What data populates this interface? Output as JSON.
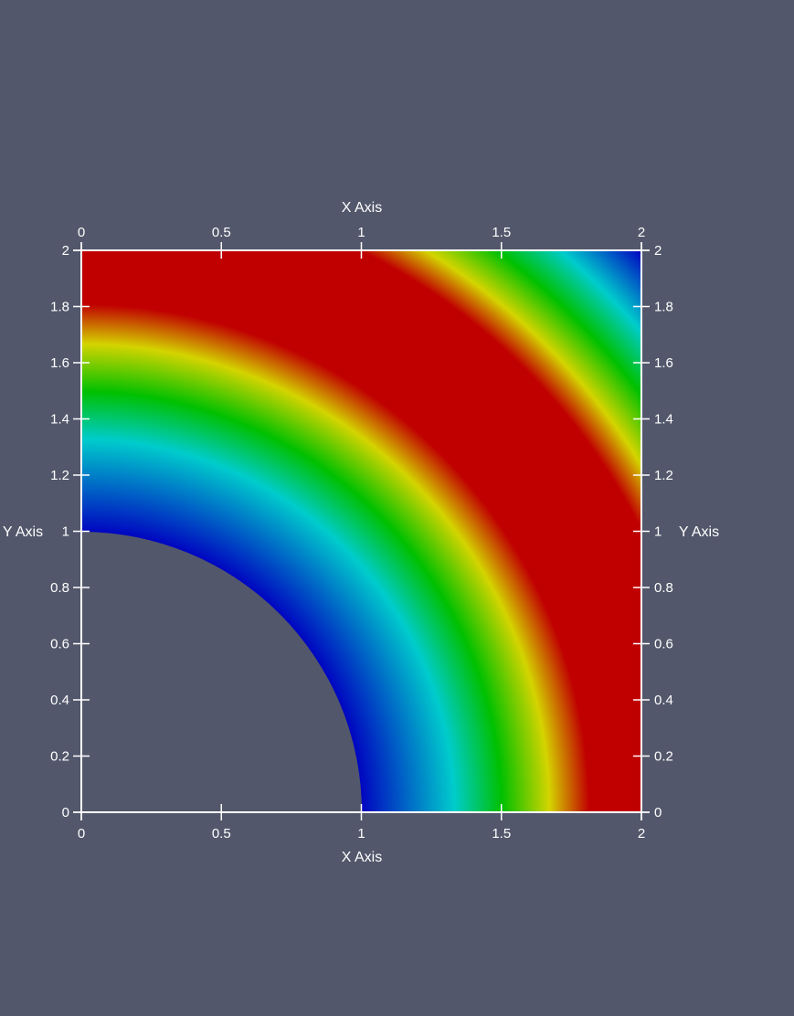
{
  "background_color": "#52576b",
  "axis_color": "#ffffff",
  "colormap": [
    "#0000c0",
    "#00cccc",
    "#00c000",
    "#d4d400",
    "#c00000",
    "#c00000",
    "#d4d400",
    "#00c000",
    "#00cccc",
    "#0000c0"
  ],
  "axes": {
    "x_title_top": "X Axis",
    "x_title_bottom": "X Axis",
    "y_title_left": "Y Axis",
    "y_title_right": "Y Axis",
    "x_ticks": [
      "0",
      "0.5",
      "1",
      "1.5",
      "2"
    ],
    "y_ticks": [
      "0",
      "0.2",
      "0.4",
      "0.6",
      "0.8",
      "1",
      "1.2",
      "1.4",
      "1.6",
      "1.8",
      "2"
    ]
  },
  "chart_data": {
    "type": "heatmap",
    "title": "",
    "xlabel": "X Axis",
    "ylabel": "Y Axis",
    "xlim": [
      0,
      2
    ],
    "ylim": [
      0,
      2
    ],
    "x_ticks": [
      0,
      0.5,
      1,
      1.5,
      2
    ],
    "y_ticks": [
      0,
      0.2,
      0.4,
      0.6,
      0.8,
      1,
      1.2,
      1.4,
      1.6,
      1.8,
      2
    ],
    "domain": "quarter annulus, radius >= 1 within [0,2] x [0,2]",
    "inner_radius": 1,
    "field": "radial bands: blue at r=1, cyan ~1.32, green ~1.5, yellow ~1.66, red ~1.8-2.2, then yellow ~2.35, green ~2.5, cyan ~2.62, blue ~2.83"
  }
}
